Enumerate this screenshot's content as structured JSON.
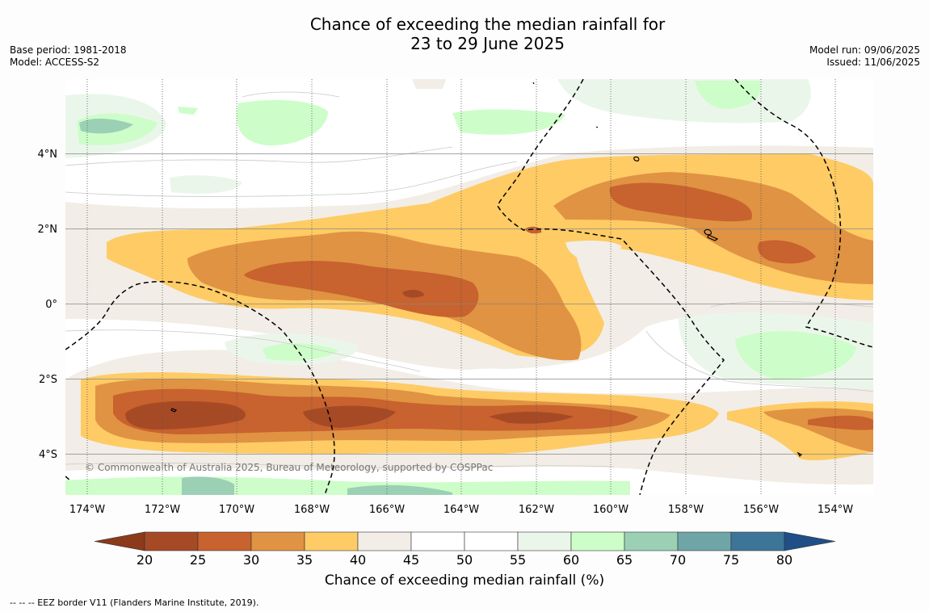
{
  "header": {
    "title_line1": "Chance of exceeding the median rainfall for",
    "title_line2": "23 to 29 June 2025",
    "base_period": "Base period: 1981-2018",
    "model": "Model: ACCESS-S2",
    "model_run": "Model run: 09/06/2025",
    "issued": "Issued: 11/06/2025"
  },
  "map": {
    "lat_labels": [
      "4°N",
      "2°N",
      "0°",
      "2°S",
      "4°S"
    ],
    "lon_labels": [
      "174°W",
      "172°W",
      "170°W",
      "168°W",
      "166°W",
      "164°W",
      "162°W",
      "160°W",
      "158°W",
      "156°W",
      "154°W"
    ],
    "copyright": "© Commonwealth of Australia 2025, Bureau of Meteorology, supported by COSPPac"
  },
  "colorbar": {
    "ticks": [
      "20",
      "25",
      "30",
      "35",
      "40",
      "45",
      "50",
      "55",
      "60",
      "65",
      "70",
      "75",
      "80"
    ],
    "colors": [
      "#8b3a1a",
      "#a64a26",
      "#c8622e",
      "#e09342",
      "#fecb65",
      "#f2ede6",
      "#ffffff",
      "#ffffff",
      "#ebf6ea",
      "#cdfdc9",
      "#9bd0b5",
      "#6fa5a6",
      "#3d7599",
      "#1f4f86"
    ],
    "label": "Chance of exceeding median rainfall (%)"
  },
  "footnote": "--  --  -- EEZ border V11 (Flanders Marine Institute, 2019).",
  "chart_data": {
    "type": "heatmap",
    "title": "Chance of exceeding the median rainfall for 23 to 29 June 2025",
    "xlabel": "",
    "ylabel": "",
    "xlim": [
      -174.5,
      -153
    ],
    "ylim": [
      -5.2,
      6
    ],
    "colorbar_range": [
      20,
      80
    ],
    "colorbar_label": "Chance of exceeding median rainfall (%)",
    "grid": true
  }
}
